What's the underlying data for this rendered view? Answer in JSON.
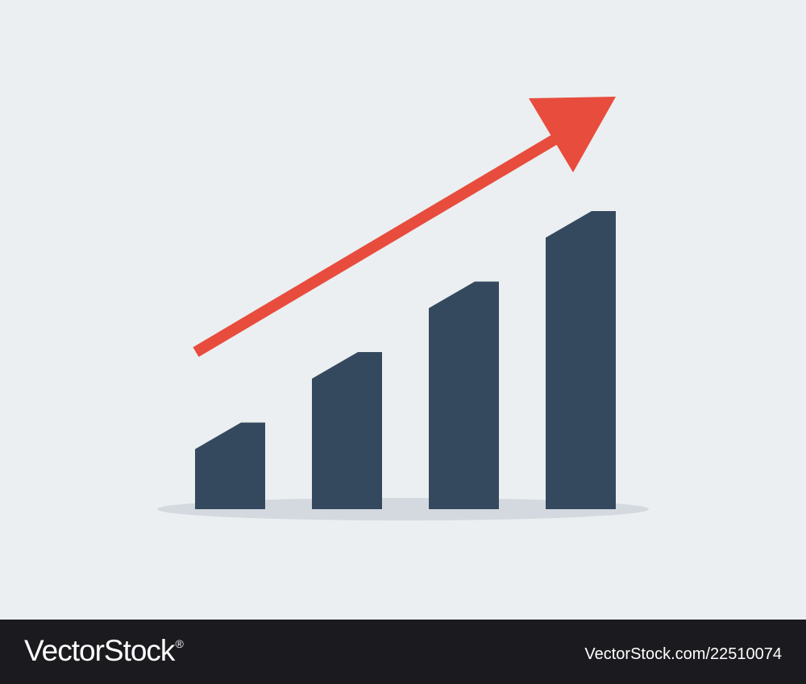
{
  "illustration": {
    "bars": [
      {
        "value": 1
      },
      {
        "value": 2
      },
      {
        "value": 3
      },
      {
        "value": 4
      }
    ],
    "trend": "upward",
    "colors": {
      "background": "#ebeff1",
      "bar": "#35495e",
      "arrow": "#e84c3d",
      "shadow": "#d4d9df"
    },
    "icons": {
      "arrow": "trend-arrow-icon"
    }
  },
  "footer": {
    "brand_text": "VectorStock",
    "brand_mark": "®",
    "image_id_text": "VectorStock.com/22510074",
    "colors": {
      "background": "#1b1b1f",
      "text": "#ffffff"
    }
  }
}
